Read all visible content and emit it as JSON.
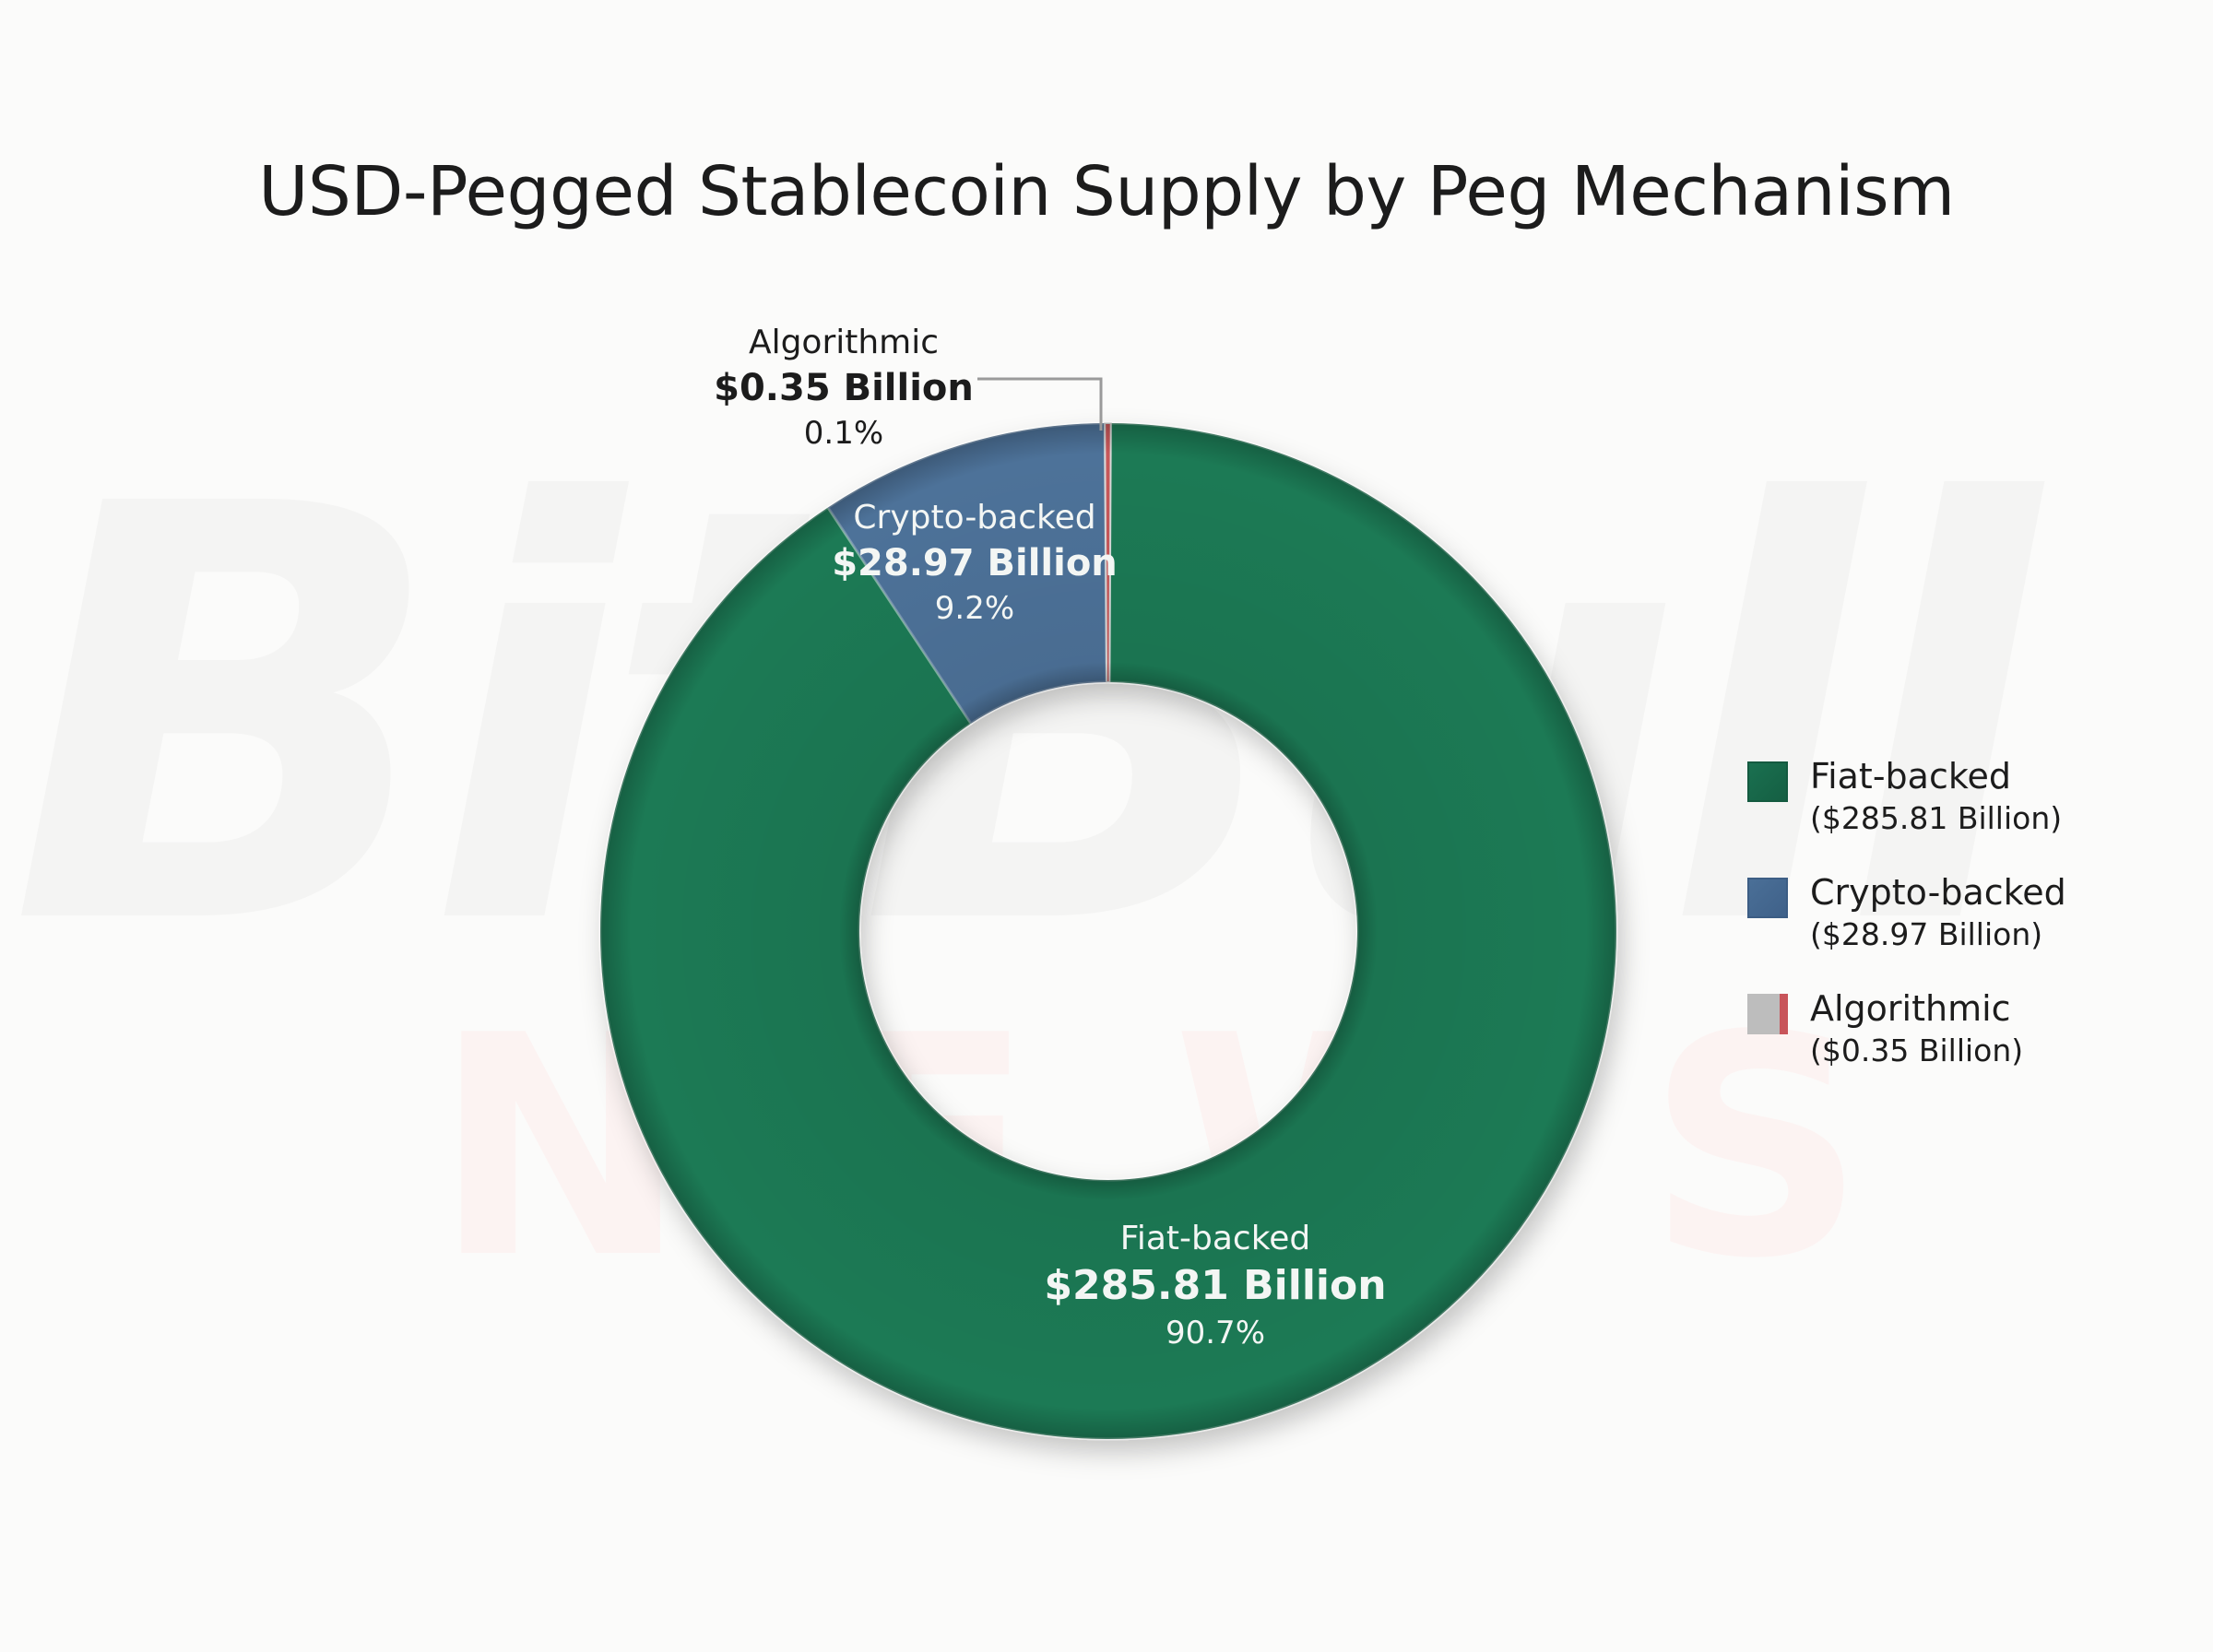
{
  "title": "USD-Pegged Stablecoin Supply by Peg Mechanism",
  "watermark": {
    "top": "BitBull",
    "bottom": "NEWS"
  },
  "slices": [
    {
      "name": "Fiat-backed",
      "value_label": "$285.81 Billion",
      "pct_label": "90.7%",
      "color": "#1c7a55"
    },
    {
      "name": "Crypto-backed",
      "value_label": "$28.97 Billion",
      "pct_label": "9.2%",
      "color": "#4d7299"
    },
    {
      "name": "Algorithmic",
      "value_label": "$0.35 Billion",
      "pct_label": "0.1%",
      "color": "#c8585a"
    }
  ],
  "legend": [
    {
      "name": "Fiat-backed",
      "value": "($285.81 Billion)",
      "color": "#1a7050"
    },
    {
      "name": "Crypto-backed",
      "value": "($28.97 Billion)",
      "color": "#4a6f97"
    },
    {
      "name": "Algorithmic",
      "value": "($0.35 Billion)",
      "color": "#bdbdbd",
      "accent": "#c8545a"
    }
  ],
  "chart_data": {
    "type": "pie",
    "variant": "donut",
    "title": "USD-Pegged Stablecoin Supply by Peg Mechanism",
    "categories": [
      "Fiat-backed",
      "Crypto-backed",
      "Algorithmic"
    ],
    "values": [
      285.81,
      28.97,
      0.35
    ],
    "unit": "Billion USD",
    "percentages": [
      90.7,
      9.2,
      0.1
    ],
    "colors": [
      "#1c7a55",
      "#4d7299",
      "#c8585a"
    ],
    "legend_position": "right",
    "start_angle": "12 o'clock, clockwise"
  }
}
